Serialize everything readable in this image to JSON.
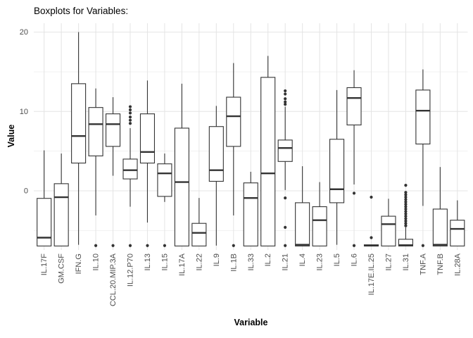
{
  "chart_data": {
    "type": "boxplot",
    "title": "Boxplots for Variables:",
    "xlabel": "Variable",
    "ylabel": "Value",
    "ylim": [
      -7.45,
      21.1
    ],
    "yticks": [
      0,
      10,
      20
    ],
    "yminor": [
      -5,
      5,
      15
    ],
    "grid": "major and minor light-grey gridlines on white panel, vertical major gridline at each category, legend none",
    "colors": {
      "box_stroke": "#333333",
      "box_fill": "#ffffff",
      "gridline_major": "#e4e4e4",
      "gridline_minor": "#f1f1f1",
      "tick_label": "#4d4d4d",
      "title": "#000000"
    },
    "categories": [
      "IL.17F",
      "GM.CSF",
      "IFN.G",
      "IL.10",
      "CCL.20.MIP.3A",
      "IL.12.P70",
      "IL.13",
      "IL.15",
      "IL.17A",
      "IL.22",
      "IL.9",
      "IL.1B",
      "IL.33",
      "IL.2",
      "IL.21",
      "IL.4",
      "IL.23",
      "IL.5",
      "IL.6",
      "IL.17E.IL.25",
      "IL.27",
      "IL.31",
      "TNF.A",
      "TNF.B",
      "IL.28A"
    ],
    "boxes": [
      {
        "variable": "IL.17F",
        "whisker_low": null,
        "q1": -6.95,
        "median": -5.9,
        "q3": -0.95,
        "whisker_high": 5.1,
        "outliers": []
      },
      {
        "variable": "GM.CSF",
        "whisker_low": null,
        "q1": -6.95,
        "median": -0.8,
        "q3": 0.9,
        "whisker_high": 4.7,
        "outliers": []
      },
      {
        "variable": "IFN.G",
        "whisker_low": -6.8,
        "q1": 3.5,
        "median": 6.9,
        "q3": 13.5,
        "whisker_high": 20.0,
        "outliers": []
      },
      {
        "variable": "IL.10",
        "whisker_low": -3.1,
        "q1": 4.4,
        "median": 8.4,
        "q3": 10.5,
        "whisker_high": 12.9,
        "outliers": [
          -6.9
        ]
      },
      {
        "variable": "CCL.20.MIP.3A",
        "whisker_low": 1.9,
        "q1": 5.6,
        "median": 8.4,
        "q3": 9.7,
        "whisker_high": 11.8,
        "outliers": [
          -6.9
        ]
      },
      {
        "variable": "IL.12.P70",
        "whisker_low": -2.0,
        "q1": 1.5,
        "median": 2.6,
        "q3": 4.0,
        "whisker_high": 7.9,
        "outliers": [
          8.5,
          8.9,
          9.3,
          9.8,
          10.2,
          10.6,
          -6.9
        ]
      },
      {
        "variable": "IL.13",
        "whisker_low": -4.0,
        "q1": 3.5,
        "median": 4.9,
        "q3": 9.7,
        "whisker_high": 13.9,
        "outliers": [
          -6.9
        ]
      },
      {
        "variable": "IL.15",
        "whisker_low": -1.4,
        "q1": -0.7,
        "median": 2.2,
        "q3": 3.4,
        "whisker_high": 4.7,
        "outliers": [
          -6.9
        ]
      },
      {
        "variable": "IL.17A",
        "whisker_low": null,
        "q1": -6.95,
        "median": 1.1,
        "q3": 7.9,
        "whisker_high": 13.5,
        "outliers": []
      },
      {
        "variable": "IL.22",
        "whisker_low": null,
        "q1": -6.95,
        "median": -5.3,
        "q3": -4.1,
        "whisker_high": -0.9,
        "outliers": []
      },
      {
        "variable": "IL.9",
        "whisker_low": -6.9,
        "q1": 1.2,
        "median": 2.6,
        "q3": 8.1,
        "whisker_high": 10.7,
        "outliers": []
      },
      {
        "variable": "IL.1B",
        "whisker_low": -3.1,
        "q1": 5.6,
        "median": 9.4,
        "q3": 11.8,
        "whisker_high": 16.1,
        "outliers": [
          -6.9
        ]
      },
      {
        "variable": "IL.33",
        "whisker_low": null,
        "q1": -6.95,
        "median": -0.9,
        "q3": 1.0,
        "whisker_high": 2.4,
        "outliers": []
      },
      {
        "variable": "IL.2",
        "whisker_low": null,
        "q1": -6.95,
        "median": 2.2,
        "q3": 14.3,
        "whisker_high": 17.0,
        "outliers": []
      },
      {
        "variable": "IL.21",
        "whisker_low": 0.1,
        "q1": 3.7,
        "median": 5.4,
        "q3": 6.4,
        "whisker_high": 10.6,
        "outliers": [
          10.9,
          11.2,
          11.6,
          12.2,
          12.6,
          -0.9,
          -4.6,
          -6.9
        ]
      },
      {
        "variable": "IL.4",
        "whisker_low": null,
        "q1": -6.95,
        "median": -6.8,
        "q3": -1.5,
        "whisker_high": 3.1,
        "outliers": []
      },
      {
        "variable": "IL.23",
        "whisker_low": null,
        "q1": -6.95,
        "median": -3.7,
        "q3": -2.0,
        "whisker_high": 1.1,
        "outliers": []
      },
      {
        "variable": "IL.5",
        "whisker_low": -6.8,
        "q1": -1.5,
        "median": 0.2,
        "q3": 6.5,
        "whisker_high": 12.7,
        "outliers": []
      },
      {
        "variable": "IL.6",
        "whisker_low": 0.8,
        "q1": 8.3,
        "median": 11.7,
        "q3": 13.0,
        "whisker_high": 15.2,
        "outliers": [
          -0.3,
          -6.9
        ]
      },
      {
        "variable": "IL.17E.IL.25",
        "whisker_low": null,
        "q1": -6.95,
        "median": -6.9,
        "q3": -6.8,
        "whisker_high": null,
        "outliers": [
          -0.8,
          -5.9
        ]
      },
      {
        "variable": "IL.27",
        "whisker_low": null,
        "q1": -6.95,
        "median": -4.2,
        "q3": -3.2,
        "whisker_high": -1.0,
        "outliers": []
      },
      {
        "variable": "IL.31",
        "whisker_low": null,
        "q1": -6.95,
        "median": -6.85,
        "q3": -6.1,
        "whisker_high": -4.6,
        "outliers": [
          0.7,
          -0.2,
          -0.5,
          -0.8,
          -1.1,
          -1.4,
          -1.7,
          -2.0,
          -2.3,
          -2.6,
          -2.9,
          -3.2,
          -3.5,
          -3.8,
          -4.1,
          -4.4
        ]
      },
      {
        "variable": "TNF.A",
        "whisker_low": -1.9,
        "q1": 5.9,
        "median": 10.1,
        "q3": 12.7,
        "whisker_high": 15.3,
        "outliers": [
          -6.9
        ]
      },
      {
        "variable": "TNF.B",
        "whisker_low": null,
        "q1": -6.95,
        "median": -6.8,
        "q3": -2.3,
        "whisker_high": 3.0,
        "outliers": []
      },
      {
        "variable": "IL.28A",
        "whisker_low": null,
        "q1": -6.95,
        "median": -4.8,
        "q3": -3.7,
        "whisker_high": -1.2,
        "outliers": []
      }
    ]
  }
}
